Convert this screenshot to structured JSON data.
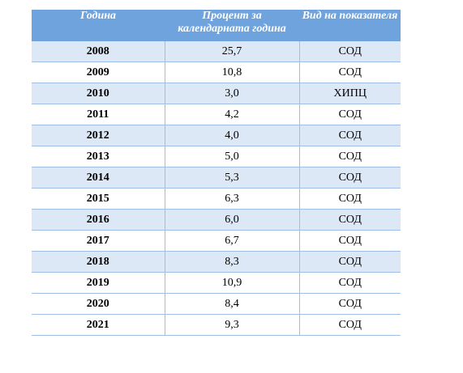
{
  "table": {
    "headers": [
      "Година",
      "Процент за календарната година",
      "Вид на показателя"
    ],
    "rows": [
      {
        "year": "2008",
        "percent": "25,7",
        "type": "СОД"
      },
      {
        "year": "2009",
        "percent": "10,8",
        "type": "СОД"
      },
      {
        "year": "2010",
        "percent": "3,0",
        "type": "ХИПЦ"
      },
      {
        "year": "2011",
        "percent": "4,2",
        "type": "СОД"
      },
      {
        "year": "2012",
        "percent": "4,0",
        "type": "СОД"
      },
      {
        "year": "2013",
        "percent": "5,0",
        "type": "СОД"
      },
      {
        "year": "2014",
        "percent": "5,3",
        "type": "СОД"
      },
      {
        "year": "2015",
        "percent": "6,3",
        "type": "СОД"
      },
      {
        "year": "2016",
        "percent": "6,0",
        "type": "СОД"
      },
      {
        "year": "2017",
        "percent": "6,7",
        "type": "СОД"
      },
      {
        "year": "2018",
        "percent": "8,3",
        "type": "СОД"
      },
      {
        "year": "2019",
        "percent": "10,9",
        "type": "СОД"
      },
      {
        "year": "2020",
        "percent": "8,4",
        "type": "СОД"
      },
      {
        "year": "2021",
        "percent": "9,3",
        "type": "СОД"
      }
    ]
  },
  "colors": {
    "header_bg": "#6fa3de",
    "stripe_bg": "#dce8f6",
    "grid_line": "#9dbfe6"
  }
}
